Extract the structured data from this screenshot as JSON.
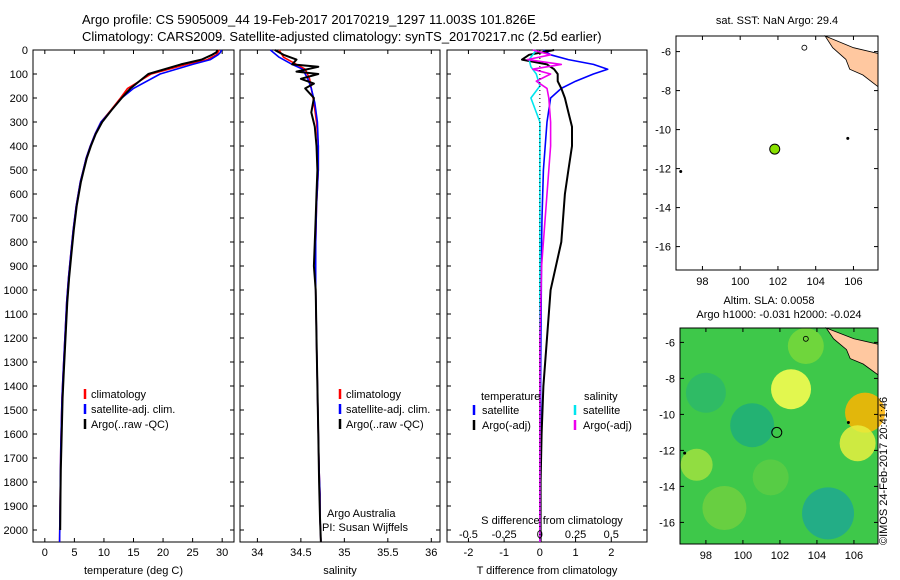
{
  "header": {
    "line1": "Argo profile: CS 5905009_44 19-Feb-2017 20170219_1297 11.003S 101.826E",
    "line2": "Climatology: CARS2009. Satellite-adjusted climatology: synTS_20170217.nc (2.5d earlier)"
  },
  "colors": {
    "climatology": "#ff0000",
    "satellite": "#0000ff",
    "argo": "#000000",
    "sal_satellite": "#00e5ee",
    "sal_argo": "#ee00ee",
    "marker": "#88e000",
    "land": "#ffc8a0"
  },
  "chart_data": [
    {
      "type": "line",
      "xlabel": "temperature (deg C)",
      "xlim": [
        -2,
        32
      ],
      "ylim": [
        2050,
        0
      ],
      "xticks": [
        "0",
        "5",
        "10",
        "15",
        "20",
        "25",
        "30"
      ],
      "yticks": [
        "0",
        "100",
        "200",
        "300",
        "400",
        "500",
        "600",
        "700",
        "800",
        "900",
        "1000",
        "1100",
        "1200",
        "1300",
        "1400",
        "1500",
        "1600",
        "1700",
        "1800",
        "1900",
        "2000"
      ],
      "legend": [
        "climatology",
        "satellite-adj. clim.",
        "Argo(..raw -QC)"
      ],
      "series": [
        {
          "name": "climatology",
          "color": "#ff0000",
          "x": [
            29.5,
            29.3,
            29,
            27.5,
            24,
            18,
            14,
            12.8,
            11.2,
            9.5,
            8.5,
            7.7,
            7,
            6.5,
            6,
            5.3,
            4.8,
            4.4,
            4,
            3.7,
            3.5,
            3.3,
            3.1,
            2.9,
            2.8,
            2.7,
            2.65,
            2.6,
            2.55,
            2.5
          ],
          "y": [
            0,
            10,
            20,
            40,
            60,
            100,
            160,
            200,
            250,
            300,
            350,
            400,
            450,
            500,
            550,
            650,
            750,
            850,
            950,
            1050,
            1150,
            1250,
            1350,
            1450,
            1550,
            1650,
            1750,
            1850,
            1950,
            2050
          ]
        },
        {
          "name": "satellite-adj. clim.",
          "color": "#0000ff",
          "x": [
            29.9,
            29.7,
            29.3,
            28,
            25,
            19.5,
            15,
            13,
            11.3,
            9.5,
            8.5,
            7.7,
            7,
            6.5,
            6,
            5.3,
            4.8,
            4.4,
            4,
            3.7,
            3.5,
            3.3,
            3.1,
            2.9,
            2.8,
            2.7,
            2.65,
            2.6,
            2.55,
            2.5
          ],
          "y": [
            0,
            10,
            20,
            40,
            60,
            100,
            160,
            200,
            250,
            300,
            350,
            400,
            450,
            500,
            550,
            650,
            750,
            850,
            950,
            1050,
            1150,
            1250,
            1350,
            1450,
            1550,
            1650,
            1750,
            1850,
            1950,
            2050
          ]
        },
        {
          "name": "Argo(..raw -QC)",
          "color": "#000000",
          "x": [
            29.2,
            29,
            28.3,
            26.5,
            23,
            17.5,
            14.5,
            13,
            11.3,
            9.7,
            8.6,
            7.8,
            7.1,
            6.6,
            6.1,
            5.4,
            4.9,
            4.5,
            4.1,
            3.8,
            3.6,
            3.4,
            3.2,
            3,
            2.9,
            2.8,
            2.7,
            2.65,
            2.6
          ],
          "y": [
            0,
            10,
            20,
            40,
            60,
            100,
            160,
            200,
            250,
            300,
            350,
            400,
            450,
            500,
            550,
            650,
            750,
            850,
            950,
            1050,
            1150,
            1250,
            1350,
            1450,
            1550,
            1650,
            1750,
            1850,
            2000
          ]
        }
      ]
    },
    {
      "type": "line",
      "xlabel": "salinity",
      "xlim": [
        33.8,
        36.1
      ],
      "ylim": [
        2050,
        0
      ],
      "xticks": [
        "34",
        "34.5",
        "35",
        "35.5",
        "36"
      ],
      "legend": [
        "climatology",
        "satellite-adj. clim.",
        "Argo(..raw -QC)"
      ],
      "annotation": [
        "Argo Australia",
        "PI: Susan Wijffels"
      ],
      "series": [
        {
          "name": "climatology",
          "color": "#ff0000",
          "x": [
            34.25,
            34.3,
            34.45,
            34.55,
            34.6,
            34.62,
            34.65,
            34.68,
            34.7,
            34.7,
            34.68,
            34.67,
            34.67,
            34.68,
            34.69,
            34.7,
            34.71,
            34.72,
            34.72,
            34.73
          ],
          "y": [
            0,
            30,
            60,
            80,
            120,
            160,
            220,
            300,
            400,
            500,
            650,
            800,
            1000,
            1200,
            1400,
            1600,
            1750,
            1850,
            1950,
            2050
          ]
        },
        {
          "name": "satellite-adj. clim.",
          "color": "#0000ff",
          "x": [
            34.15,
            34.25,
            34.4,
            34.52,
            34.58,
            34.62,
            34.66,
            34.69,
            34.7,
            34.7,
            34.68,
            34.67,
            34.67,
            34.68,
            34.69,
            34.7,
            34.71,
            34.72,
            34.72,
            34.73
          ],
          "y": [
            0,
            30,
            60,
            80,
            120,
            160,
            220,
            300,
            400,
            500,
            650,
            800,
            1000,
            1200,
            1400,
            1600,
            1750,
            1850,
            1950,
            2050
          ]
        },
        {
          "name": "Argo(..raw -QC)",
          "color": "#000000",
          "x": [
            34.2,
            34.3,
            34.45,
            34.4,
            34.7,
            34.45,
            34.7,
            34.5,
            34.65,
            34.55,
            34.65,
            34.62,
            34.66,
            34.68,
            34.69,
            34.68,
            34.67,
            34.66,
            34.65,
            34.67,
            34.68,
            34.69,
            34.7,
            34.71,
            34.72,
            34.73
          ],
          "y": [
            0,
            20,
            40,
            60,
            70,
            90,
            100,
            120,
            140,
            160,
            200,
            260,
            320,
            400,
            500,
            600,
            700,
            800,
            900,
            1000,
            1200,
            1400,
            1600,
            1800,
            1950,
            2050
          ]
        }
      ]
    },
    {
      "type": "line",
      "xlabel": "T difference from climatology",
      "xlabel_top": "S difference from climatology",
      "xlim": [
        -2.6,
        3
      ],
      "ylim": [
        2050,
        0
      ],
      "xticks": [
        "-2",
        "-1",
        "0",
        "1",
        "2"
      ],
      "xticks_top": [
        "-0.5",
        "-0.25",
        "0",
        "0.25",
        "0.5"
      ],
      "legend_headers": [
        "temperature",
        "salinity"
      ],
      "legend": [
        "satellite",
        "Argo(-adj)",
        "satellite",
        "Argo(-adj)"
      ],
      "series": [
        {
          "name": "satellite",
          "color": "#0000ff",
          "x": [
            0.1,
            0.3,
            0.8,
            1.5,
            1.9,
            1.5,
            1,
            0.6,
            0.3,
            0.2,
            0.15,
            0.1,
            0.08,
            0.06,
            0.05,
            0.04,
            0.03,
            0.02,
            0.02,
            0.02,
            0.02
          ],
          "y": [
            0,
            20,
            40,
            60,
            80,
            100,
            130,
            160,
            200,
            300,
            400,
            500,
            600,
            700,
            800,
            1000,
            1200,
            1400,
            1600,
            1800,
            2050
          ]
        },
        {
          "name": "Argo(-adj)",
          "color": "#000000",
          "x": [
            0.4,
            -0.3,
            -0.5,
            0.2,
            0.4,
            0.5,
            0.5,
            0.6,
            0.7,
            0.8,
            0.9,
            0.9,
            0.8,
            0.7,
            0.6,
            0.3,
            0.2,
            0.1,
            0.05,
            0.02,
            0.02
          ],
          "y": [
            0,
            20,
            40,
            60,
            80,
            100,
            130,
            160,
            200,
            260,
            320,
            400,
            500,
            600,
            800,
            1000,
            1200,
            1400,
            1600,
            1800,
            2050
          ]
        },
        {
          "name": "satellite",
          "color": "#00e5ee",
          "x": [
            -0.1,
            -0.3,
            -0.25,
            -0.1,
            0,
            -0.25,
            -0.1,
            0,
            0,
            0,
            0,
            0,
            0,
            0,
            0,
            0
          ],
          "y": [
            0,
            40,
            70,
            100,
            150,
            200,
            260,
            300,
            400,
            600,
            800,
            1000,
            1200,
            1400,
            1600,
            2050
          ]
        },
        {
          "name": "Argo(-adj)",
          "color": "#ee00ee",
          "x": [
            -0.2,
            0.3,
            -0.35,
            0.6,
            -0.2,
            0.3,
            -0.1,
            0.2,
            0.25,
            0.3,
            0.3,
            0.25,
            0.15,
            0.05,
            0,
            0
          ],
          "y": [
            0,
            20,
            40,
            60,
            80,
            100,
            130,
            160,
            200,
            300,
            400,
            500,
            700,
            900,
            1200,
            2050
          ]
        }
      ]
    },
    {
      "type": "scatter",
      "title": "sat. SST: NaN Argo: 29.4",
      "xlim": [
        96.6,
        107.3
      ],
      "ylim": [
        -17.2,
        -5.2
      ],
      "xticks": [
        "98",
        "100",
        "102",
        "104",
        "106"
      ],
      "yticks": [
        "-6",
        "-8",
        "-10",
        "-12",
        "-14",
        "-16"
      ],
      "points": [
        {
          "x": 101.83,
          "y": -11.0
        }
      ]
    },
    {
      "type": "heatmap",
      "title": "Altim. SLA: 0.0058",
      "subtitle": "Argo h1000: -0.031 h2000: -0.024",
      "xlim": [
        96.6,
        107.3
      ],
      "ylim": [
        -17.2,
        -5.2
      ],
      "xticks": [
        "98",
        "100",
        "102",
        "104",
        "106"
      ],
      "yticks": [
        "-6",
        "-8",
        "-10",
        "-12",
        "-14",
        "-16"
      ],
      "points": [
        {
          "x": 101.83,
          "y": -11.0
        }
      ]
    }
  ],
  "footer": {
    "credit": "©IMOS 24-Feb-2017 20:41:46"
  }
}
